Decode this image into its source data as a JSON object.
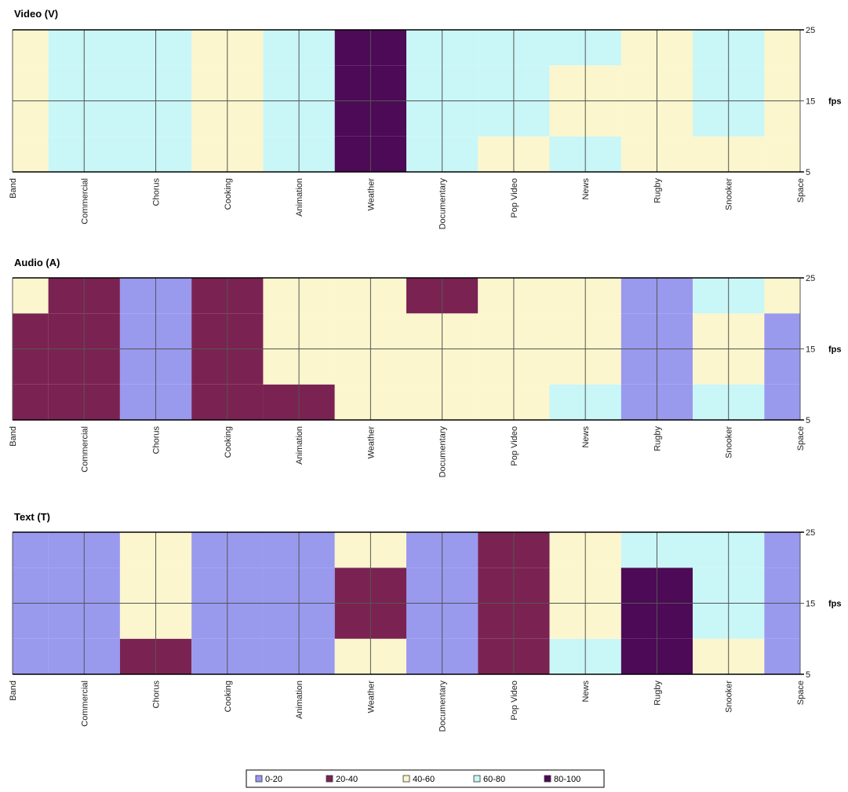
{
  "legend": [
    {
      "label": "0-20",
      "color": "#9999ee"
    },
    {
      "label": "20-40",
      "color": "#7a2352"
    },
    {
      "label": "40-60",
      "color": "#fbf6cd"
    },
    {
      "label": "60-80",
      "color": "#c9f6f7"
    },
    {
      "label": "80-100",
      "color": "#4d0a56"
    }
  ],
  "chart_data": [
    {
      "type": "heatmap",
      "title": "Video (V)",
      "categories": [
        "Band",
        "Commercial",
        "Chorus",
        "Cooking",
        "Animation",
        "Weather",
        "Documentary",
        "Pop Video",
        "News",
        "Rugby",
        "Snooker",
        "Space"
      ],
      "y": [
        5,
        15,
        25
      ],
      "y_tick_labels": [
        "25",
        "15",
        "5"
      ],
      "ylabel": "fps",
      "ylim": [
        5,
        25
      ],
      "values": [
        [
          50,
          70,
          70,
          50,
          70,
          90,
          70,
          50,
          70,
          50,
          50,
          50
        ],
        [
          50,
          70,
          70,
          50,
          60,
          90,
          70,
          70,
          50,
          50,
          70,
          50
        ],
        [
          50,
          70,
          70,
          50,
          70,
          90,
          70,
          70,
          70,
          50,
          60,
          50
        ]
      ]
    },
    {
      "type": "heatmap",
      "title": "Audio (A)",
      "categories": [
        "Band",
        "Commercial",
        "Chorus",
        "Cooking",
        "Animation",
        "Weather",
        "Documentary",
        "Pop Video",
        "News",
        "Rugby",
        "Snooker",
        "Space"
      ],
      "y": [
        5,
        15,
        25
      ],
      "y_tick_labels": [
        "25",
        "15",
        "5"
      ],
      "ylabel": "fps",
      "ylim": [
        5,
        25
      ],
      "values": [
        [
          30,
          30,
          10,
          30,
          30,
          50,
          50,
          50,
          70,
          10,
          70,
          10
        ],
        [
          30,
          30,
          10,
          30,
          50,
          50,
          50,
          50,
          50,
          10,
          50,
          10
        ],
        [
          50,
          30,
          10,
          30,
          50,
          50,
          30,
          50,
          50,
          10,
          70,
          50
        ]
      ]
    },
    {
      "type": "heatmap",
      "title": "Text (T)",
      "categories": [
        "Band",
        "Commercial",
        "Chorus",
        "Cooking",
        "Animation",
        "Weather",
        "Documentary",
        "Pop Video",
        "News",
        "Rugby",
        "Snooker",
        "Space"
      ],
      "y": [
        5,
        15,
        25
      ],
      "y_tick_labels": [
        "25",
        "15",
        "5"
      ],
      "ylabel": "fps",
      "ylim": [
        5,
        25
      ],
      "values": [
        [
          10,
          10,
          30,
          10,
          10,
          50,
          10,
          30,
          70,
          90,
          50,
          10
        ],
        [
          10,
          10,
          50,
          10,
          10,
          30,
          10,
          30,
          50,
          90,
          70,
          10
        ],
        [
          10,
          10,
          50,
          10,
          10,
          50,
          10,
          30,
          50,
          70,
          60,
          10
        ]
      ]
    }
  ]
}
